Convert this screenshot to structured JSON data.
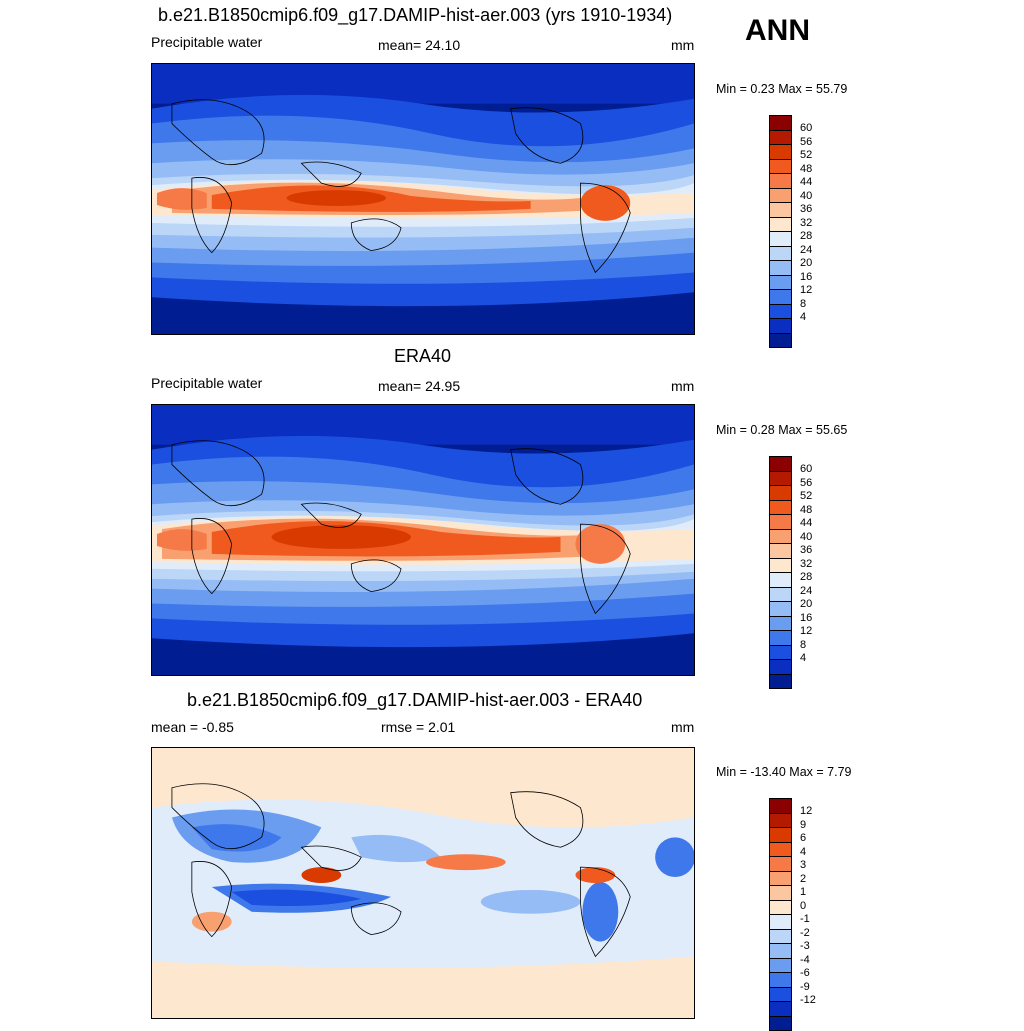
{
  "season": "ANN",
  "panels": [
    {
      "title": "b.e21.B1850cmip6.f09_g17.DAMIP-hist-aer.003 (yrs 1910-1934)",
      "left_label": "Precipitable water",
      "center_label": "mean=  24.10",
      "units": "mm",
      "minmax": "Min =   0.23 Max =  55.79"
    },
    {
      "title": "ERA40",
      "left_label": "Precipitable water",
      "center_label": "mean=  24.95",
      "units": "mm",
      "minmax": "Min =   0.28 Max =  55.65"
    },
    {
      "title": "b.e21.B1850cmip6.f09_g17.DAMIP-hist-aer.003 - ERA40",
      "left_label": "mean =  -0.85",
      "center_label": "rmse =   2.01",
      "units": "mm",
      "minmax": "Min = -13.40 Max =   7.79"
    }
  ],
  "colorbars": {
    "field": {
      "labels": [
        "60",
        "56",
        "52",
        "48",
        "44",
        "40",
        "36",
        "32",
        "28",
        "24",
        "20",
        "16",
        "12",
        "8",
        "4"
      ],
      "colors": [
        "#8b0000",
        "#b31a00",
        "#d93a00",
        "#f05a1e",
        "#f57a48",
        "#f8a070",
        "#fbc6a0",
        "#fde7cf",
        "#e1ecfb",
        "#bcd6f8",
        "#95bcf5",
        "#6a9df0",
        "#3f78ea",
        "#1a4fe0",
        "#0a2ec0",
        "#001e92"
      ]
    },
    "diff": {
      "labels": [
        "12",
        "9",
        "6",
        "4",
        "3",
        "2",
        "1",
        "0",
        "-1",
        "-2",
        "-3",
        "-4",
        "-6",
        "-9",
        "-12"
      ],
      "colors": [
        "#8b0000",
        "#b31a00",
        "#d93a00",
        "#f05a1e",
        "#f57a48",
        "#f8a070",
        "#fbc6a0",
        "#fde7cf",
        "#e1ecfb",
        "#bcd6f8",
        "#95bcf5",
        "#6a9df0",
        "#3f78ea",
        "#1a4fe0",
        "#0a2ec0",
        "#001e92"
      ]
    }
  }
}
